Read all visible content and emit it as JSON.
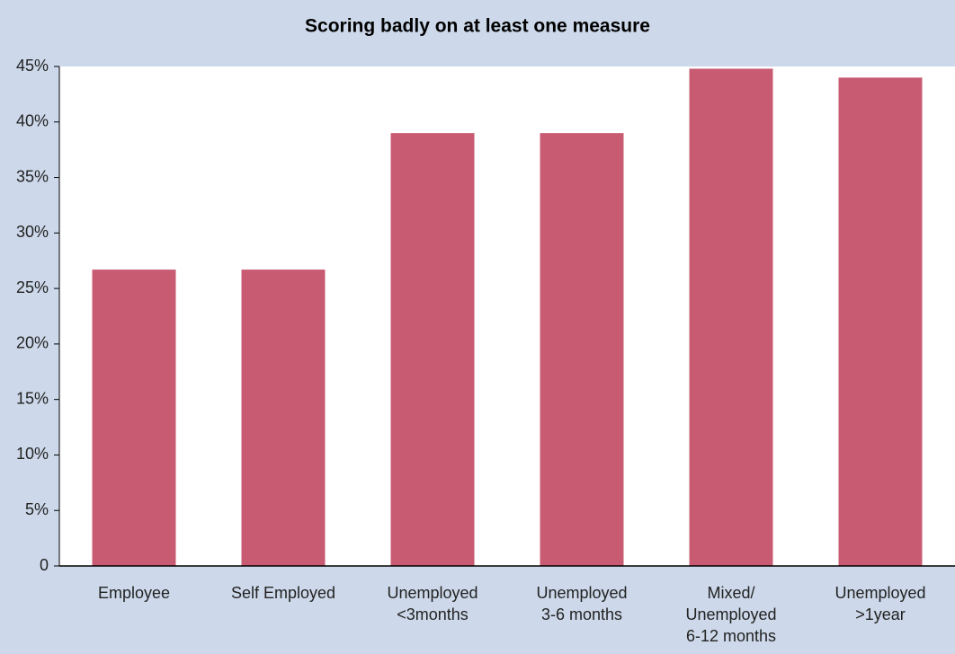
{
  "chart_data": {
    "type": "bar",
    "title": "Scoring badly on at least one measure",
    "categories": [
      "Employee",
      "Self Employed",
      "Unemployed\n<3months",
      "Unemployed\n3-6 months",
      "Mixed/\nUnemployed\n6-12 months",
      "Unemployed\n>1year"
    ],
    "values": [
      26.7,
      26.7,
      39,
      39,
      44.8,
      44
    ],
    "color": "#c85a72",
    "ylim": [
      0,
      45
    ],
    "yticks": [
      0,
      {
        "value": 5,
        "label": "5%"
      },
      {
        "value": 10,
        "label": "10%"
      },
      {
        "value": 15,
        "label": "15%"
      },
      {
        "value": 20,
        "label": "20%"
      },
      {
        "value": 25,
        "label": "25%"
      },
      {
        "value": 30,
        "label": "30%"
      },
      {
        "value": 35,
        "label": "35%"
      },
      {
        "value": 40,
        "label": "40%"
      },
      {
        "value": 45,
        "label": "45%"
      }
    ],
    "grid": false
  }
}
